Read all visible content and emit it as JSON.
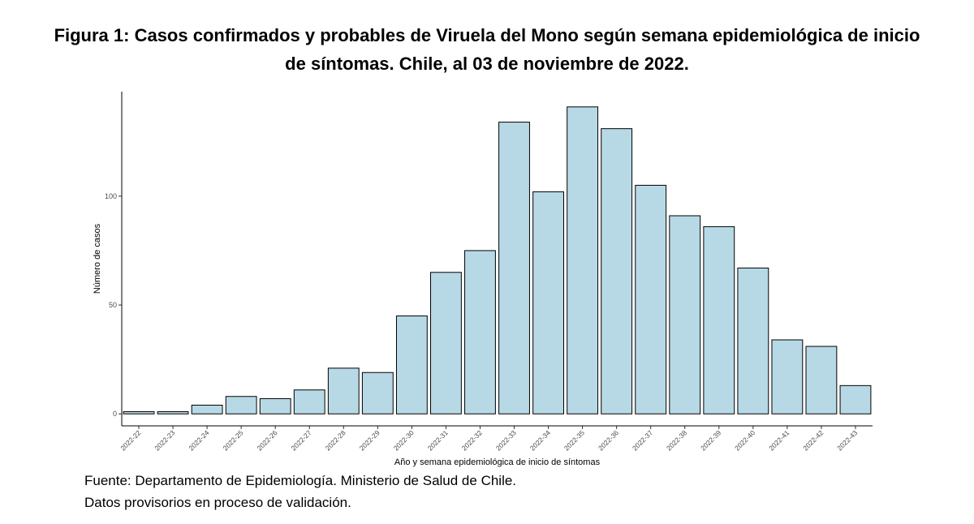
{
  "title": {
    "line1": "Figura 1: Casos confirmados y probables de Viruela del Mono según semana epidemiológica de inicio",
    "line2": "de síntomas. Chile, al 03 de noviembre de 2022."
  },
  "footer": {
    "source": "Fuente: Departamento de Epidemiología. Ministerio de Salud de Chile.",
    "note": "Datos provisorios en proceso de validación."
  },
  "chart_data": {
    "type": "bar",
    "title": "Figura 1: Casos confirmados y probables de Viruela del Mono según semana epidemiológica de inicio de síntomas. Chile, al 03 de noviembre de 2022.",
    "xlabel": "Año y semana epidemiológica de inicio de síntomas",
    "ylabel": "Número de casos",
    "categories": [
      "2022-22",
      "2022-23",
      "2022-24",
      "2022-25",
      "2022-26",
      "2022-27",
      "2022-28",
      "2022-29",
      "2022-30",
      "2022-31",
      "2022-32",
      "2022-33",
      "2022-34",
      "2022-35",
      "2022-36",
      "2022-37",
      "2022-38",
      "2022-39",
      "2022-40",
      "2022-41",
      "2022-42",
      "2022-43"
    ],
    "values": [
      1,
      1,
      4,
      8,
      7,
      11,
      21,
      19,
      45,
      65,
      75,
      134,
      102,
      141,
      131,
      105,
      91,
      86,
      67,
      34,
      31,
      13
    ],
    "yticks": [
      0,
      50,
      100
    ],
    "ylim": [
      -5.5,
      148
    ],
    "grid": false,
    "legend": "none",
    "colors": {
      "bar_fill": "#b7d9e6",
      "bar_stroke": "#000000",
      "axis": "#000000"
    }
  }
}
